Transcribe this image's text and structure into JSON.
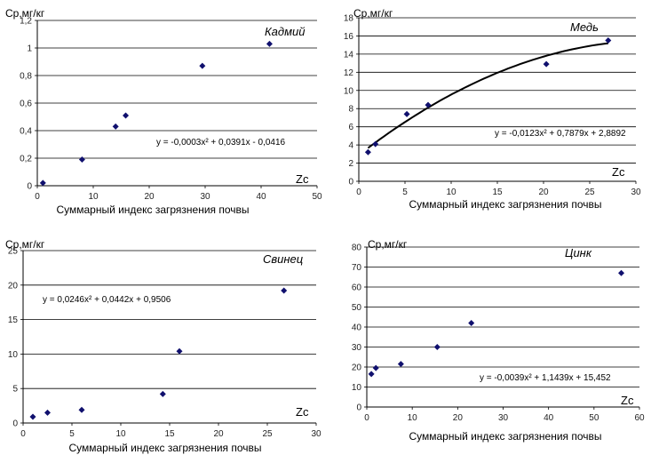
{
  "chart_data": [
    {
      "type": "scatter",
      "title": "Кадмий",
      "ylabel": "Ср,мг/кг",
      "xlabel": "Суммарный индекс загрязнения почвы",
      "axis_tag": "Zc",
      "equation": "y = -0,0003x² + 0,0391x - 0,0416",
      "xlim": [
        0,
        50
      ],
      "ylim": [
        0,
        1.2
      ],
      "xticks": [
        "0",
        "10",
        "20",
        "30",
        "40",
        "50"
      ],
      "yticks": [
        "0",
        "0,2",
        "0,4",
        "0,6",
        "0,8",
        "1",
        "1,2"
      ],
      "grid": true,
      "trendline": false,
      "x": [
        1,
        8,
        14,
        15.8,
        29.5,
        41.5
      ],
      "y": [
        0.02,
        0.19,
        0.43,
        0.51,
        0.87,
        1.03
      ],
      "point_color": "#10106e"
    },
    {
      "type": "scatter",
      "title": "Медь",
      "ylabel": "Ср,мг/кг",
      "xlabel": "Суммарный индекс загрязнения почвы",
      "axis_tag": "Zc",
      "equation": "y = -0,0123x² + 0,7879x + 2,8892",
      "xlim": [
        0,
        30
      ],
      "ylim": [
        0,
        18
      ],
      "xticks": [
        "0",
        "5",
        "10",
        "15",
        "20",
        "25",
        "30"
      ],
      "yticks": [
        "0",
        "2",
        "4",
        "6",
        "8",
        "10",
        "12",
        "14",
        "16",
        "18"
      ],
      "grid": true,
      "trendline": true,
      "trend_coeffs": [
        -0.0123,
        0.7879,
        2.8892
      ],
      "trend_range": [
        1,
        27
      ],
      "x": [
        1,
        1.8,
        5.2,
        7.5,
        20.3,
        27
      ],
      "y": [
        3.2,
        4.1,
        7.4,
        8.4,
        12.9,
        15.5
      ],
      "point_color": "#10106e"
    },
    {
      "type": "scatter",
      "title": "Свинец",
      "ylabel": "Ср,мг/кг",
      "xlabel": "Суммарный индекс загрязнения почвы",
      "axis_tag": "Zc",
      "equation": "y = 0,0246x² + 0,0442x + 0,9506",
      "xlim": [
        0,
        30
      ],
      "ylim": [
        0,
        25
      ],
      "xticks": [
        "0",
        "5",
        "10",
        "15",
        "20",
        "25",
        "30"
      ],
      "yticks": [
        "0",
        "5",
        "10",
        "15",
        "20",
        "25"
      ],
      "grid": true,
      "trendline": false,
      "x": [
        1,
        2.5,
        6,
        14.3,
        16,
        26.7
      ],
      "y": [
        0.9,
        1.5,
        1.9,
        4.2,
        10.4,
        19.2
      ],
      "point_color": "#10106e"
    },
    {
      "type": "scatter",
      "title": "Цинк",
      "ylabel": "Ср,мг/кг",
      "xlabel": "Суммарный индекс загрязнения почвы",
      "axis_tag": "Zc",
      "equation": "y = -0,0039x² + 1,1439x + 15,452",
      "xlim": [
        0,
        60
      ],
      "ylim": [
        0,
        80
      ],
      "xticks": [
        "0",
        "10",
        "20",
        "30",
        "40",
        "50",
        "60"
      ],
      "yticks": [
        "0",
        "10",
        "20",
        "30",
        "40",
        "50",
        "60",
        "70",
        "80"
      ],
      "grid": true,
      "trendline": false,
      "x": [
        1,
        2,
        7.5,
        15.5,
        23,
        56
      ],
      "y": [
        16.5,
        19.5,
        21.5,
        30,
        42,
        67
      ],
      "point_color": "#10106e"
    }
  ]
}
